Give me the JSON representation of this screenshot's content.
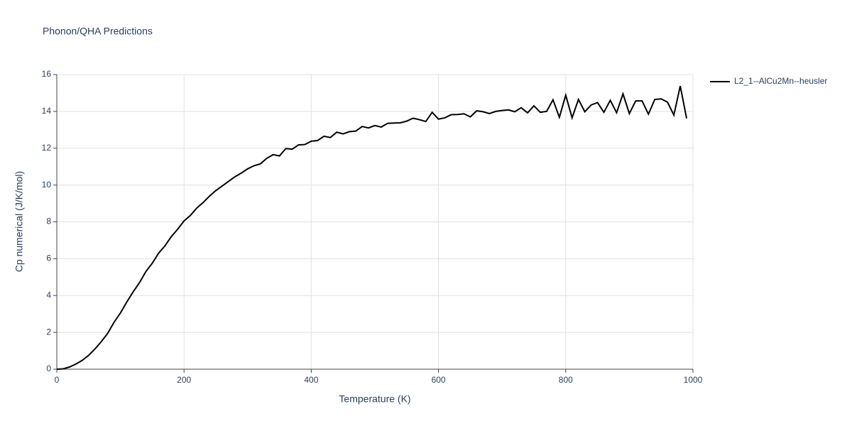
{
  "chart_data": {
    "type": "line",
    "title": "Phonon/QHA Predictions",
    "x_label": "Temperature (K)",
    "y_label": "Cp numerical (J/K/mol)",
    "x": [
      0,
      10,
      20,
      30,
      40,
      50,
      60,
      70,
      80,
      90,
      100,
      110,
      120,
      130,
      140,
      150,
      160,
      170,
      180,
      190,
      200,
      210,
      220,
      230,
      240,
      250,
      260,
      270,
      280,
      290,
      300,
      310,
      320,
      330,
      340,
      350,
      360,
      370,
      380,
      390,
      400,
      410,
      420,
      430,
      440,
      450,
      460,
      470,
      480,
      490,
      500,
      510,
      520,
      530,
      540,
      550,
      560,
      570,
      580,
      590,
      600,
      610,
      620,
      630,
      640,
      650,
      660,
      670,
      680,
      690,
      700,
      710,
      720,
      730,
      740,
      750,
      760,
      770,
      780,
      790,
      800,
      810,
      820,
      830,
      840,
      850,
      860,
      870,
      880,
      890,
      900,
      910,
      920,
      930,
      940,
      950,
      960,
      970,
      980,
      990
    ],
    "series": [
      {
        "name": "L2_1--AlCu2Mn--heusler",
        "color": "#000000",
        "values": [
          0,
          0.02,
          0.12,
          0.28,
          0.48,
          0.75,
          1.1,
          1.5,
          1.95,
          2.55,
          3.05,
          3.65,
          4.2,
          4.7,
          5.3,
          5.75,
          6.3,
          6.7,
          7.2,
          7.6,
          8.05,
          8.35,
          8.75,
          9.05,
          9.4,
          9.7,
          9.95,
          10.2,
          10.45,
          10.65,
          10.88,
          11.05,
          11.15,
          11.45,
          11.65,
          11.58,
          11.98,
          11.95,
          12.18,
          12.2,
          12.38,
          12.42,
          12.65,
          12.58,
          12.87,
          12.78,
          12.9,
          12.93,
          13.18,
          13.1,
          13.23,
          13.15,
          13.35,
          13.37,
          13.38,
          13.47,
          13.63,
          13.55,
          13.45,
          13.95,
          13.58,
          13.65,
          13.82,
          13.83,
          13.87,
          13.7,
          14.03,
          13.98,
          13.88,
          14.0,
          14.05,
          14.08,
          13.98,
          14.2,
          13.92,
          14.3,
          13.95,
          14.0,
          14.63,
          13.68,
          14.88,
          13.65,
          14.65,
          13.98,
          14.35,
          14.48,
          13.95,
          14.6,
          13.93,
          14.95,
          13.88,
          14.57,
          14.57,
          13.85,
          14.65,
          14.68,
          14.5,
          13.8,
          15.38,
          13.62
        ]
      }
    ],
    "xlim": [
      0,
      1000
    ],
    "xticks": [
      0,
      200,
      400,
      600,
      800,
      1000
    ],
    "ylim": [
      0,
      16
    ],
    "yticks": [
      0,
      2,
      4,
      6,
      8,
      10,
      12,
      14,
      16
    ],
    "grid": true,
    "legend": "top-right"
  }
}
